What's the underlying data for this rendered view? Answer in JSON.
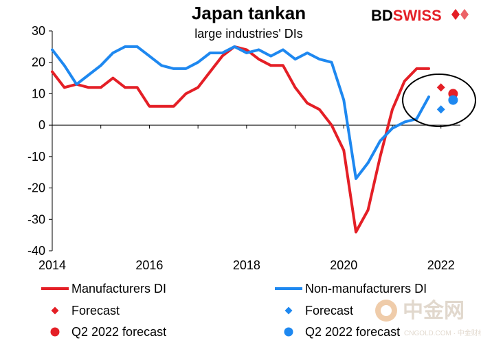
{
  "chart_data": {
    "type": "line",
    "title": "Japan tankan",
    "subtitle": "large industries' DIs",
    "brand": {
      "bd": "BD",
      "swiss": "SWISS"
    },
    "x_ticks": [
      "2014",
      "2016",
      "2018",
      "2020",
      "2022"
    ],
    "y_ticks": [
      "30",
      "20",
      "10",
      "0",
      "-10",
      "-20",
      "-30",
      "-40"
    ],
    "xlim": [
      2014,
      2022.4
    ],
    "ylim": [
      -40,
      30
    ],
    "grid": false,
    "legend_position": "bottom",
    "series": [
      {
        "name": "Manufacturers DI",
        "color": "#e41f26",
        "x": [
          2014.0,
          2014.25,
          2014.5,
          2014.75,
          2015.0,
          2015.25,
          2015.5,
          2015.75,
          2016.0,
          2016.25,
          2016.5,
          2016.75,
          2017.0,
          2017.25,
          2017.5,
          2017.75,
          2018.0,
          2018.25,
          2018.5,
          2018.75,
          2019.0,
          2019.25,
          2019.5,
          2019.75,
          2020.0,
          2020.25,
          2020.5,
          2020.75,
          2021.0,
          2021.25,
          2021.5,
          2021.75
        ],
        "y": [
          17,
          12,
          13,
          12,
          12,
          15,
          12,
          12,
          6,
          6,
          6,
          10,
          12,
          17,
          22,
          25,
          24,
          21,
          19,
          19,
          12,
          7,
          5,
          0,
          -8,
          -34,
          -27,
          -10,
          5,
          14,
          18,
          18
        ]
      },
      {
        "name": "Non-manufacturers DI",
        "color": "#1e88f0",
        "x": [
          2014.0,
          2014.25,
          2014.5,
          2014.75,
          2015.0,
          2015.25,
          2015.5,
          2015.75,
          2016.0,
          2016.25,
          2016.5,
          2016.75,
          2017.0,
          2017.25,
          2017.5,
          2017.75,
          2018.0,
          2018.25,
          2018.5,
          2018.75,
          2019.0,
          2019.25,
          2019.5,
          2019.75,
          2020.0,
          2020.25,
          2020.5,
          2020.75,
          2021.0,
          2021.25,
          2021.5,
          2021.75
        ],
        "y": [
          24,
          19,
          13,
          16,
          19,
          23,
          25,
          25,
          22,
          19,
          18,
          18,
          20,
          23,
          23,
          25,
          23,
          24,
          22,
          24,
          21,
          23,
          21,
          20,
          8,
          -17,
          -12,
          -5,
          -1,
          1,
          2,
          9
        ]
      }
    ],
    "forecasts": [
      {
        "name": "Forecast",
        "series": "Manufacturers DI",
        "marker": "diamond",
        "color": "#e41f26",
        "x": 2022.0,
        "y": 12
      },
      {
        "name": "Forecast",
        "series": "Non-manufacturers DI",
        "marker": "diamond",
        "color": "#1e88f0",
        "x": 2022.0,
        "y": 5
      },
      {
        "name": "Q2 2022 forecast",
        "series": "Manufacturers DI",
        "marker": "circle",
        "color": "#e41f26",
        "x": 2022.25,
        "y": 10
      },
      {
        "name": "Q2 2022 forecast",
        "series": "Non-manufacturers DI",
        "marker": "circle",
        "color": "#1e88f0",
        "x": 2022.25,
        "y": 8
      }
    ],
    "legend": [
      {
        "label": "Manufacturers DI",
        "marker": "line",
        "color": "#e41f26"
      },
      {
        "label": "Non-manufacturers DI",
        "marker": "line",
        "color": "#1e88f0"
      },
      {
        "label": "Forecast",
        "marker": "diamond",
        "color": "#e41f26"
      },
      {
        "label": "Forecast",
        "marker": "diamond",
        "color": "#1e88f0"
      },
      {
        "label": "Q2 2022 forecast",
        "marker": "circle",
        "color": "#e41f26"
      },
      {
        "label": "Q2 2022 forecast",
        "marker": "circle",
        "color": "#1e88f0"
      }
    ]
  },
  "watermark": {
    "main": "中金网",
    "sub": "CNGOLD.COM · 中金财经新媒体"
  }
}
